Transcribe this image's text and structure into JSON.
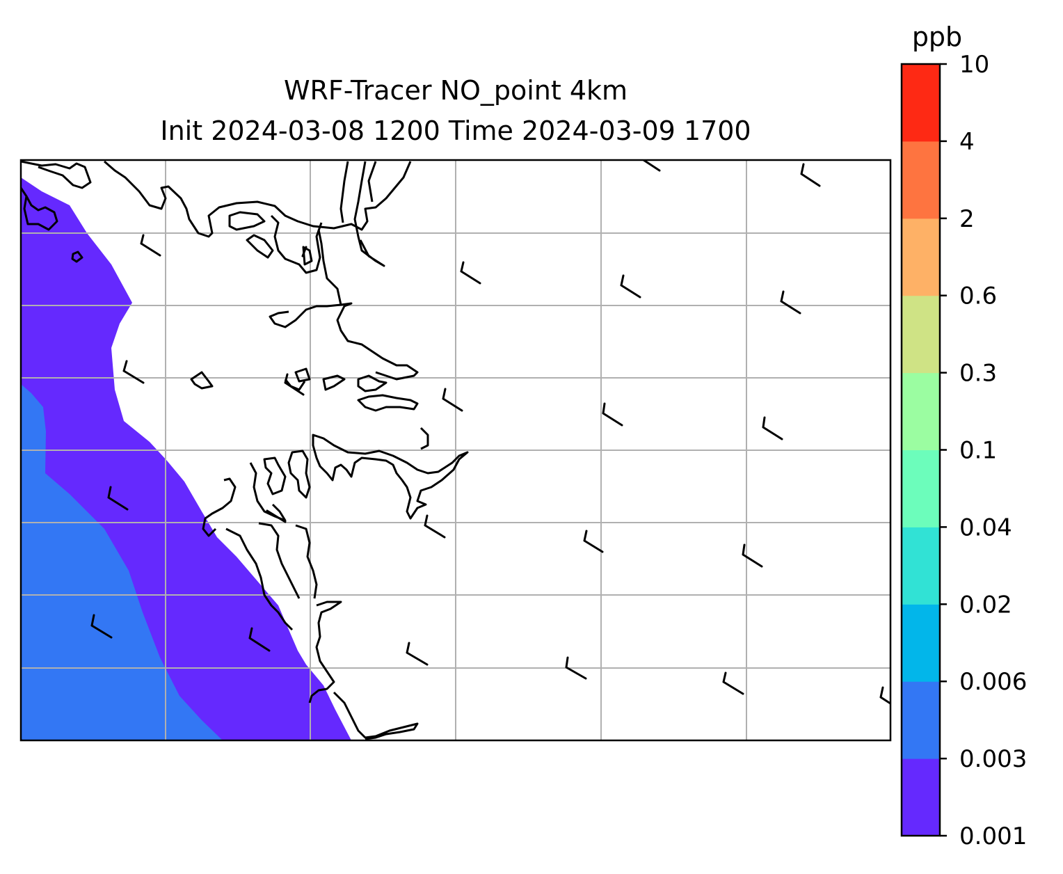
{
  "map": {
    "title_line1": "WRF-Tracer NO_point 4km",
    "title_line2": "Init 2024-03-08 1200 Time 2024-03-09 1700",
    "land_color": "#ffffff",
    "coastline_color": "#000000",
    "gridline_color": "#b0b0b0",
    "grid": true
  },
  "colorbar": {
    "unit": "ppb",
    "levels": [
      "0.001",
      "0.003",
      "0.006",
      "0.02",
      "0.04",
      "0.1",
      "0.3",
      "0.6",
      "2",
      "4",
      "10"
    ],
    "colors": [
      "#6529fe",
      "#3377f4",
      "#02b6ea",
      "#31e2d5",
      "#6cfdbb",
      "#9bfda1",
      "#cfe385",
      "#feb166",
      "#fe7440",
      "#fe2914"
    ]
  },
  "wind_barbs": {
    "style": "half-barb (light wind, northwesterly)",
    "count": 25
  }
}
